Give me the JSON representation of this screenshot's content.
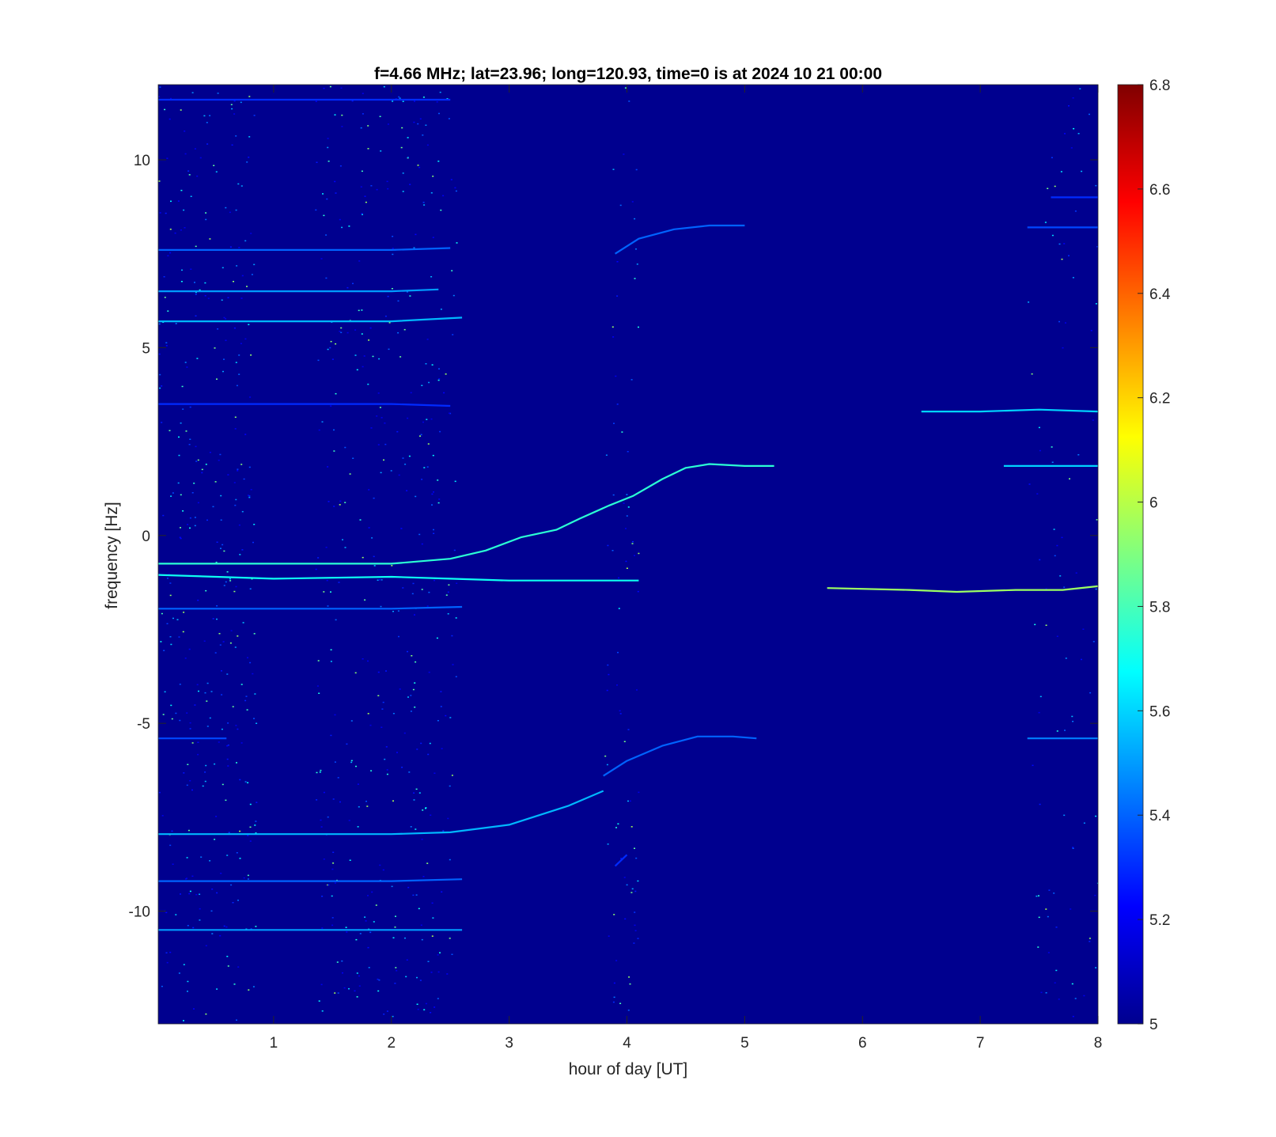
{
  "chart_data": {
    "type": "heatmap",
    "title": "f=4.66 MHz;  lat=23.96; long=120.93, time=0 is at 2024 10 21 00:00",
    "xlabel": "hour of day [UT]",
    "ylabel": "frequency [Hz]",
    "xlim": [
      0.02,
      8.0
    ],
    "ylim": [
      -13,
      12
    ],
    "x_ticks": [
      1,
      2,
      3,
      4,
      5,
      6,
      7,
      8
    ],
    "x_tick_labels": [
      "1",
      "2",
      "3",
      "4",
      "5",
      "6",
      "7",
      "8"
    ],
    "y_ticks": [
      10,
      5,
      0,
      -5,
      -10
    ],
    "y_tick_labels": [
      "10",
      "5",
      "0",
      "-5",
      "-10"
    ],
    "colorbar": {
      "colormap": "jet",
      "clim": [
        5,
        6.8
      ],
      "ticks": [
        5,
        5.2,
        5.4,
        5.6,
        5.8,
        6,
        6.2,
        6.4,
        6.6,
        6.8
      ],
      "tick_labels": [
        "5",
        "5.2",
        "5.4",
        "5.6",
        "5.8",
        "6",
        "6.2",
        "6.4",
        "6.6",
        "6.8"
      ]
    },
    "background_color": "#00008f",
    "traces": [
      {
        "points": [
          [
            0.02,
            -0.75
          ],
          [
            1.0,
            -0.75
          ],
          [
            2.0,
            -0.75
          ],
          [
            2.5,
            -0.62
          ],
          [
            2.8,
            -0.4
          ],
          [
            3.1,
            -0.05
          ],
          [
            3.4,
            0.15
          ],
          [
            3.6,
            0.45
          ],
          [
            3.85,
            0.8
          ],
          [
            4.05,
            1.05
          ],
          [
            4.3,
            1.5
          ],
          [
            4.5,
            1.8
          ],
          [
            4.7,
            1.9
          ],
          [
            5.0,
            1.85
          ],
          [
            5.25,
            1.85
          ]
        ],
        "level": 5.75
      },
      {
        "points": [
          [
            0.02,
            -1.05
          ],
          [
            1.0,
            -1.15
          ],
          [
            2.0,
            -1.1
          ],
          [
            2.5,
            -1.15
          ],
          [
            3.0,
            -1.2
          ],
          [
            3.6,
            -1.2
          ],
          [
            4.1,
            -1.2
          ]
        ],
        "level": 5.7
      },
      {
        "points": [
          [
            5.7,
            -1.4
          ],
          [
            6.4,
            -1.45
          ],
          [
            6.8,
            -1.5
          ],
          [
            7.3,
            -1.45
          ],
          [
            7.7,
            -1.45
          ],
          [
            8.0,
            -1.35
          ]
        ],
        "level": 5.95
      },
      {
        "points": [
          [
            0.02,
            5.7
          ],
          [
            1.0,
            5.7
          ],
          [
            2.0,
            5.7
          ],
          [
            2.6,
            5.8
          ]
        ],
        "level": 5.55
      },
      {
        "points": [
          [
            0.02,
            6.5
          ],
          [
            1.0,
            6.5
          ],
          [
            2.0,
            6.5
          ],
          [
            2.4,
            6.55
          ]
        ],
        "level": 5.5
      },
      {
        "points": [
          [
            0.02,
            7.6
          ],
          [
            1.0,
            7.6
          ],
          [
            2.0,
            7.6
          ],
          [
            2.5,
            7.65
          ]
        ],
        "level": 5.4
      },
      {
        "points": [
          [
            0.02,
            11.6
          ],
          [
            2.5,
            11.6
          ]
        ],
        "level": 5.3
      },
      {
        "points": [
          [
            3.9,
            7.5
          ],
          [
            4.1,
            7.9
          ],
          [
            4.4,
            8.15
          ],
          [
            4.7,
            8.25
          ],
          [
            5.0,
            8.25
          ]
        ],
        "level": 5.4
      },
      {
        "points": [
          [
            0.02,
            3.5
          ],
          [
            1.0,
            3.5
          ],
          [
            2.0,
            3.5
          ],
          [
            2.5,
            3.45
          ]
        ],
        "level": 5.3
      },
      {
        "points": [
          [
            6.5,
            3.3
          ],
          [
            7.0,
            3.3
          ],
          [
            7.5,
            3.35
          ],
          [
            8.0,
            3.3
          ]
        ],
        "level": 5.6
      },
      {
        "points": [
          [
            7.2,
            1.85
          ],
          [
            7.6,
            1.85
          ],
          [
            8.0,
            1.85
          ]
        ],
        "level": 5.6
      },
      {
        "points": [
          [
            7.4,
            8.2
          ],
          [
            8.0,
            8.2
          ]
        ],
        "level": 5.35
      },
      {
        "points": [
          [
            7.6,
            9.0
          ],
          [
            8.0,
            9.0
          ]
        ],
        "level": 5.3
      },
      {
        "points": [
          [
            0.02,
            -1.95
          ],
          [
            1.0,
            -1.95
          ],
          [
            2.0,
            -1.95
          ],
          [
            2.6,
            -1.9
          ]
        ],
        "level": 5.4
      },
      {
        "points": [
          [
            0.02,
            -5.4
          ],
          [
            0.6,
            -5.4
          ]
        ],
        "level": 5.35
      },
      {
        "points": [
          [
            3.8,
            -6.4
          ],
          [
            4.0,
            -6.0
          ],
          [
            4.3,
            -5.6
          ],
          [
            4.6,
            -5.35
          ],
          [
            4.9,
            -5.35
          ],
          [
            5.1,
            -5.4
          ]
        ],
        "level": 5.4
      },
      {
        "points": [
          [
            7.4,
            -5.4
          ],
          [
            8.0,
            -5.4
          ]
        ],
        "level": 5.45
      },
      {
        "points": [
          [
            0.02,
            -7.95
          ],
          [
            1.0,
            -7.95
          ],
          [
            2.0,
            -7.95
          ],
          [
            2.5,
            -7.9
          ],
          [
            3.0,
            -7.7
          ],
          [
            3.5,
            -7.2
          ],
          [
            3.8,
            -6.8
          ]
        ],
        "level": 5.55
      },
      {
        "points": [
          [
            0.02,
            -9.2
          ],
          [
            1.0,
            -9.2
          ],
          [
            2.0,
            -9.2
          ],
          [
            2.6,
            -9.15
          ]
        ],
        "level": 5.4
      },
      {
        "points": [
          [
            3.9,
            -8.8
          ],
          [
            4.0,
            -8.5
          ]
        ],
        "level": 5.3
      },
      {
        "points": [
          [
            0.02,
            -10.5
          ],
          [
            1.0,
            -10.5
          ],
          [
            2.0,
            -10.5
          ],
          [
            2.6,
            -10.5
          ]
        ],
        "level": 5.5
      }
    ],
    "noise_bands": [
      {
        "x": [
          0.02,
          0.85
        ],
        "intensity": 0.55
      },
      {
        "x": [
          1.35,
          2.55
        ],
        "intensity": 0.45
      },
      {
        "x": [
          3.8,
          4.1
        ],
        "intensity": 0.35
      },
      {
        "x": [
          7.4,
          8.0
        ],
        "intensity": 0.2
      }
    ]
  }
}
